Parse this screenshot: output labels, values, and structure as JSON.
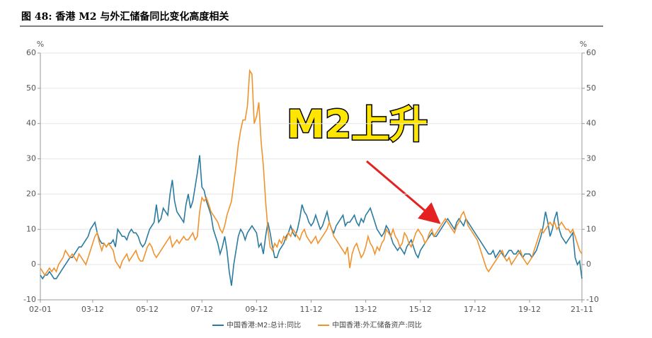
{
  "chart_data": {
    "type": "line",
    "title": "图 48:  香港 M2 与外汇储备同比变化高度相关",
    "ylabel": "%",
    "y2label": "%",
    "annotation": "M2上升",
    "categories": [
      "02-01",
      null,
      null,
      null,
      null,
      null,
      null,
      null,
      null,
      null,
      null,
      null,
      null,
      null,
      null,
      null,
      null,
      null,
      null,
      null,
      null,
      null,
      null,
      "03-12",
      null,
      null,
      null,
      null,
      null,
      null,
      null,
      null,
      null,
      null,
      null,
      null,
      null,
      null,
      null,
      null,
      null,
      null,
      null,
      null,
      null,
      null,
      null,
      "05-12",
      null,
      null,
      null,
      null,
      null,
      null,
      null,
      null,
      null,
      null,
      null,
      null,
      null,
      null,
      null,
      null,
      null,
      null,
      null,
      null,
      null,
      null,
      null,
      "07-12",
      null,
      null,
      null,
      null,
      null,
      null,
      null,
      null,
      null,
      null,
      null,
      null,
      null,
      null,
      null,
      null,
      null,
      null,
      null,
      null,
      null,
      null,
      null,
      "09-12",
      null,
      null,
      null,
      null,
      null,
      null,
      null,
      null,
      null,
      null,
      null,
      null,
      null,
      null,
      null,
      null,
      null,
      null,
      null,
      null,
      null,
      null,
      null,
      "11-12",
      null,
      null,
      null,
      null,
      null,
      null,
      null,
      null,
      null,
      null,
      null,
      null,
      null,
      null,
      null,
      null,
      null,
      null,
      null,
      null,
      null,
      null,
      null,
      "13-12",
      null,
      null,
      null,
      null,
      null,
      null,
      null,
      null,
      null,
      null,
      null,
      null,
      null,
      null,
      null,
      null,
      null,
      null,
      null,
      null,
      null,
      null,
      null,
      "15-12",
      null,
      null,
      null,
      null,
      null,
      null,
      null,
      null,
      null,
      null,
      null,
      null,
      null,
      null,
      null,
      null,
      null,
      null,
      null,
      null,
      null,
      null,
      null,
      "17-12",
      null,
      null,
      null,
      null,
      null,
      null,
      null,
      null,
      null,
      null,
      null,
      null,
      null,
      null,
      null,
      null,
      null,
      null,
      null,
      null,
      null,
      null,
      null,
      "19-12",
      null,
      null,
      null,
      null,
      null,
      null,
      null,
      null,
      null,
      null,
      null,
      null,
      null,
      null,
      null,
      null,
      null,
      null,
      null,
      null,
      null,
      null,
      "21-11"
    ],
    "series": [
      {
        "name": "中国香港:M2:总计:同比",
        "color": "#2b7ba0",
        "values": [
          -3,
          -4,
          -3,
          -3,
          -2,
          -3,
          -4,
          -4,
          -3,
          -2,
          -1,
          0,
          1,
          2,
          2,
          3,
          4,
          5,
          5,
          6,
          7,
          8,
          10,
          11,
          12,
          9,
          7,
          6,
          6,
          5,
          6,
          6,
          7,
          5,
          10,
          9,
          8,
          8,
          7,
          9,
          10,
          9,
          9,
          8,
          6,
          5,
          6,
          8,
          10,
          11,
          12,
          17,
          12,
          13,
          16,
          15,
          14,
          20,
          24,
          18,
          15,
          14,
          13,
          12,
          17,
          20,
          16,
          18,
          22,
          26,
          31,
          22,
          21,
          18,
          16,
          14,
          10,
          8,
          6,
          3,
          5,
          8,
          4,
          -2,
          -6,
          0,
          4,
          8,
          10,
          9,
          7,
          9,
          10,
          11,
          10,
          9,
          5,
          6,
          3,
          8,
          12,
          9,
          5,
          2,
          2,
          4,
          5,
          6,
          8,
          9,
          11,
          9,
          8,
          10,
          13,
          17,
          15,
          14,
          12,
          11,
          12,
          14,
          12,
          10,
          11,
          13,
          15,
          12,
          10,
          9,
          11,
          12,
          13,
          14,
          11,
          12,
          12,
          13,
          14,
          12,
          11,
          13,
          12,
          14,
          15,
          16,
          14,
          12,
          10,
          9,
          8,
          9,
          11,
          10,
          8,
          6,
          5,
          4,
          5,
          4,
          3,
          5,
          6,
          7,
          5,
          3,
          2,
          4,
          5,
          6,
          7,
          8,
          9,
          8,
          8,
          9,
          10,
          11,
          12,
          13,
          12,
          11,
          10,
          12,
          13,
          12,
          11,
          13,
          12,
          11,
          10,
          9,
          8,
          7,
          6,
          5,
          4,
          3,
          3,
          4,
          2,
          3,
          4,
          3,
          2,
          3,
          4,
          4,
          3,
          3,
          4,
          3,
          2,
          3,
          3,
          3,
          2,
          3,
          4,
          6,
          8,
          11,
          15,
          12,
          8,
          10,
          13,
          15,
          10,
          8,
          7,
          6,
          7,
          8,
          9,
          2,
          0,
          1,
          -4
        ]
      },
      {
        "name": "中国香港:外汇储备资产:同比",
        "color": "#f0922e",
        "axis": "y2",
        "values": [
          -1,
          -2,
          -3,
          -2,
          -1,
          -2,
          -1,
          -2,
          0,
          1,
          2,
          4,
          3,
          2,
          3,
          2,
          1,
          3,
          2,
          1,
          0,
          2,
          4,
          6,
          8,
          9,
          6,
          4,
          6,
          5,
          6,
          5,
          4,
          1,
          0,
          -1,
          1,
          2,
          3,
          1,
          2,
          3,
          4,
          2,
          1,
          1,
          3,
          5,
          6,
          5,
          3,
          2,
          3,
          4,
          5,
          6,
          7,
          8,
          5,
          6,
          7,
          6,
          7,
          8,
          7,
          7,
          8,
          9,
          7,
          8,
          15,
          19,
          18,
          19,
          17,
          15,
          14,
          13,
          12,
          10,
          9,
          11,
          14,
          16,
          18,
          23,
          28,
          34,
          38,
          41,
          41,
          45,
          55,
          54,
          40,
          42,
          46,
          35,
          28,
          18,
          10,
          5,
          4,
          6,
          5,
          7,
          6,
          8,
          7,
          9,
          8,
          10,
          9,
          8,
          7,
          9,
          10,
          8,
          7,
          6,
          7,
          8,
          6,
          7,
          8,
          9,
          10,
          12,
          10,
          8,
          7,
          6,
          5,
          4,
          3,
          5,
          -1,
          3,
          5,
          6,
          4,
          2,
          3,
          5,
          8,
          6,
          5,
          3,
          5,
          4,
          6,
          7,
          10,
          9,
          8,
          10,
          8,
          7,
          5,
          6,
          9,
          8,
          6,
          5,
          7,
          9,
          10,
          9,
          8,
          6,
          7,
          9,
          10,
          8,
          9,
          10,
          11,
          12,
          13,
          12,
          11,
          10,
          9,
          11,
          12,
          14,
          15,
          13,
          11,
          10,
          9,
          8,
          7,
          5,
          3,
          1,
          -1,
          -2,
          -1,
          0,
          1,
          2,
          3,
          4,
          2,
          1,
          2,
          0,
          1,
          2,
          3,
          4,
          2,
          1,
          0,
          1,
          2,
          4,
          6,
          8,
          10,
          9,
          10,
          11,
          12,
          11,
          12,
          10,
          11,
          12,
          11,
          10,
          10,
          9,
          10,
          8,
          6,
          4,
          3
        ]
      }
    ],
    "ylim": [
      -10,
      60
    ],
    "yticks": [
      -10,
      0,
      10,
      20,
      30,
      40,
      50,
      60
    ],
    "y2lim": [
      -10,
      60
    ],
    "y2ticks": [
      -10,
      0,
      10,
      20,
      30,
      40,
      50,
      60
    ],
    "grid": true
  }
}
